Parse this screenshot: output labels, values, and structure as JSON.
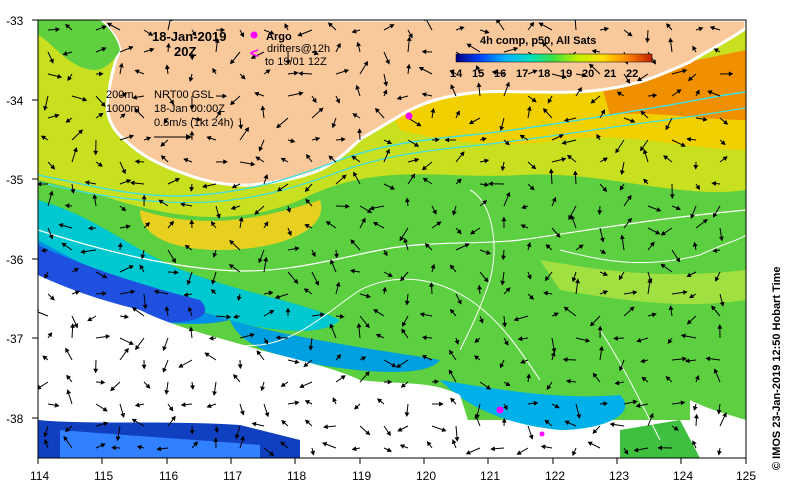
{
  "map": {
    "date_line1": "18-Jan-2019",
    "date_line2": "20Z",
    "argo_label": "Argo",
    "drifters_line1": "drifters@12h",
    "drifters_line2": "to 19/01 12Z",
    "drifter_symbol": "<",
    "contour_200": "200m",
    "contour_1000": "1000m",
    "nrt_line1": "NRT00 GSL",
    "nrt_line2": "18-Jan 00:00Z",
    "nrt_line3": "0.5m/s (1kt 24h)",
    "colorbar_title": "4h comp, p50, All Sats",
    "colorbar_ticks": [
      "14",
      "15",
      "16",
      "17",
      "18",
      "19",
      "20",
      "21",
      "22"
    ],
    "credit": "© IMOS 23-Jan-2019 12:50 Hobart Time",
    "y_ticks": [
      "-33",
      "-34",
      "-35",
      "-36",
      "-37",
      "-38"
    ],
    "x_ticks": [
      "114",
      "115",
      "116",
      "117",
      "118",
      "119",
      "120",
      "121",
      "122",
      "123",
      "124",
      "125"
    ],
    "colors": {
      "land": "#f9c89b",
      "argo_marker": "#ff00ff",
      "shelf_contour": "#40e0e0",
      "deep_contour": "#ffffff"
    },
    "icons": [
      "argo-marker-icon",
      "drifter-arrow-icon",
      "scale-arrow-icon"
    ]
  }
}
